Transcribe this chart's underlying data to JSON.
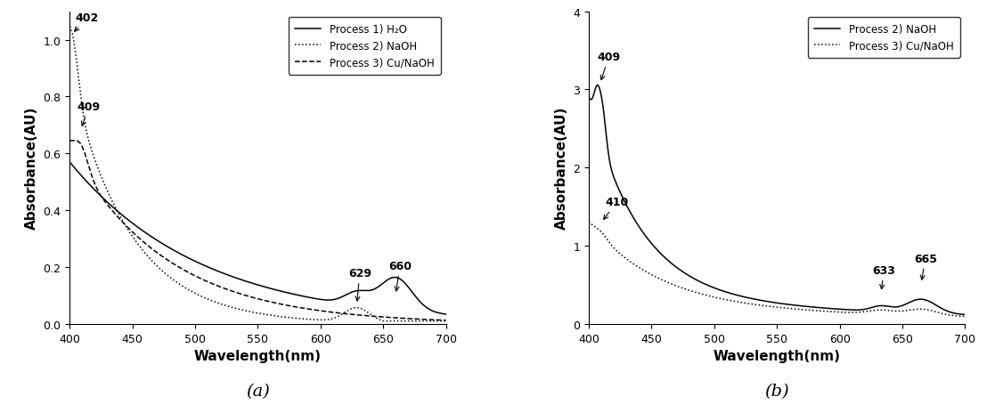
{
  "panel_a": {
    "title": "(a)",
    "xlabel": "Wavelength(nm)",
    "ylabel": "Absorbance(AU)",
    "xlim": [
      400,
      700
    ],
    "ylim": [
      0,
      1.1
    ],
    "yticks": [
      0.0,
      0.2,
      0.4,
      0.6,
      0.8,
      1.0
    ],
    "xticks": [
      400,
      450,
      500,
      550,
      600,
      650,
      700
    ],
    "legend": [
      "Process 1) H₂O",
      "Process 2) NaOH",
      "Process 3) Cu/NaOH"
    ],
    "line_styles": [
      "solid",
      "dotted",
      "dashed"
    ]
  },
  "panel_b": {
    "title": "(b)",
    "xlabel": "Wavelength(nm)",
    "ylabel": "Absorbance(AU)",
    "xlim": [
      400,
      700
    ],
    "ylim": [
      0,
      4.0
    ],
    "yticks": [
      0,
      1,
      2,
      3,
      4
    ],
    "xticks": [
      400,
      450,
      500,
      550,
      600,
      650,
      700
    ],
    "legend": [
      "Process 2) NaOH",
      "Process 3) Cu/NaOH"
    ],
    "line_styles": [
      "solid",
      "dotted"
    ]
  },
  "figure_bgcolor": "#ffffff",
  "line_color": "#000000",
  "font_size": 10,
  "label_fontsize": 11
}
